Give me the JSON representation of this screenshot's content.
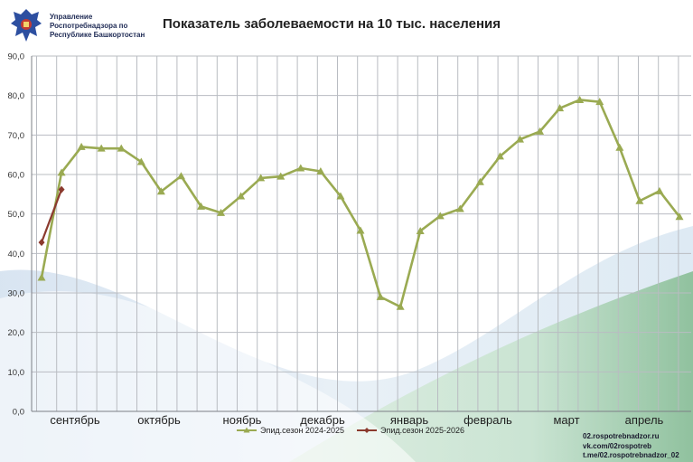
{
  "header": {
    "org_line1": "Управление",
    "org_line2": "Роспотребнадзора по",
    "org_line3": "Республике Башкортостан",
    "logo_icon": "eagle-emblem-icon"
  },
  "chart_data": {
    "type": "line",
    "title": "Показатель заболеваемости на 10 тыс. населения",
    "xlabel": "",
    "ylabel": "",
    "ylim": [
      0,
      90
    ],
    "yticks": [
      "0,0",
      "10,0",
      "20,0",
      "30,0",
      "40,0",
      "50,0",
      "60,0",
      "70,0",
      "80,0",
      "90,0"
    ],
    "month_labels": [
      "сентябрь",
      "октябрь",
      "ноябрь",
      "декабрь",
      "январь",
      "февраль",
      "март",
      "апрель"
    ],
    "grid": true,
    "legend_position": "bottom",
    "series": [
      {
        "name": "Эпид.сезон 2024-2025",
        "color": "#9aaa52",
        "marker": "triangle",
        "values": [
          33.9,
          60.5,
          67.0,
          66.6,
          66.6,
          63.2,
          55.7,
          59.6,
          51.9,
          50.3,
          54.5,
          59.1,
          59.5,
          61.6,
          60.8,
          54.5,
          45.8,
          29.0,
          26.5,
          45.7,
          49.5,
          51.3,
          58.1,
          64.6,
          68.9,
          70.9,
          76.8,
          78.9,
          78.4,
          66.8,
          53.3,
          55.8,
          49.3
        ]
      },
      {
        "name": "Эпид.сезон 2025-2026",
        "color": "#8b3a2e",
        "marker": "diamond",
        "values": [
          42.8,
          56.2
        ]
      }
    ]
  },
  "footer": {
    "site": "02.rospotrebnadzor.ru",
    "vk": "vk.com/02rospotreb",
    "telegram": "t.me/02.rospotrebnadzor_02"
  }
}
